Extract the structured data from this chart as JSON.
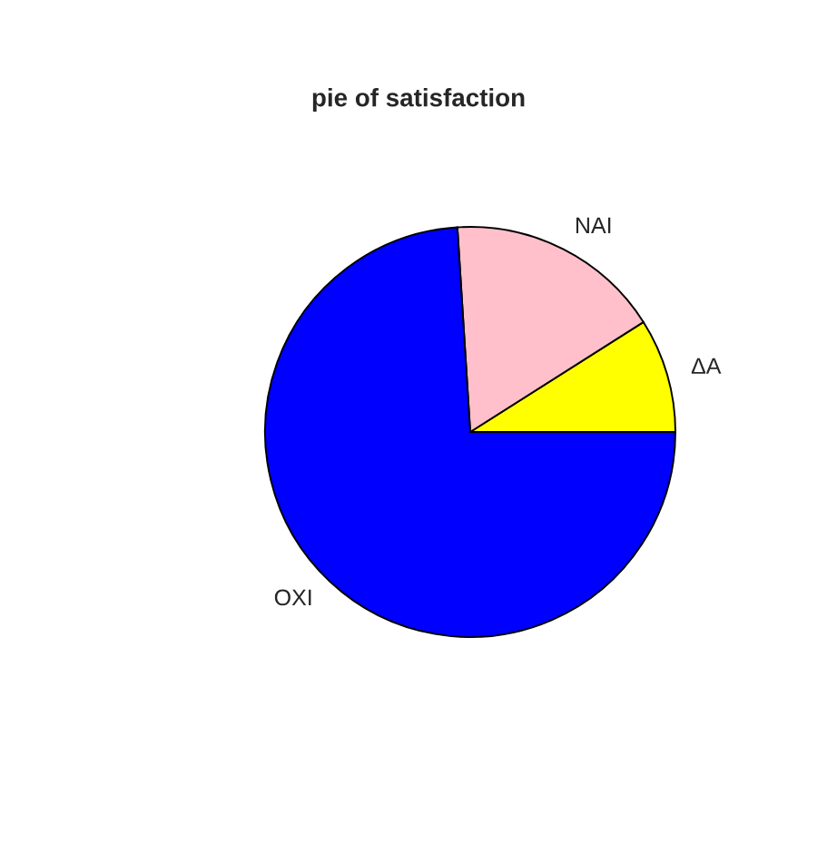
{
  "chart_data": {
    "type": "pie",
    "title": "pie of satisfaction",
    "categories": [
      "ΔΑ",
      "ΝΑΙ",
      "ΟΧΙ"
    ],
    "values": [
      9,
      17,
      74
    ],
    "colors": [
      "#ffff00",
      "#ffc0cb",
      "#0000ff"
    ]
  }
}
